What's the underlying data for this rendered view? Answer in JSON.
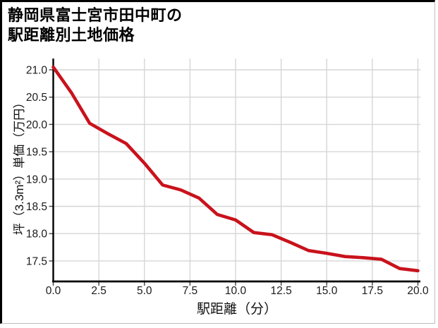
{
  "window": {
    "background": "#ffffff",
    "border_dark": "#000000",
    "border_light": "#bdbdbd"
  },
  "title": {
    "line1": "静岡県富士宮市田中町の",
    "line2": "駅距離別土地価格"
  },
  "chart_data": {
    "type": "line",
    "title": "静岡県富士宮市田中町の駅距離別土地価格",
    "xlabel": "駅距離（分）",
    "ylabel": "坪（3.3m²）単価（万円）",
    "x": [
      0,
      1,
      2,
      3,
      4,
      5,
      6,
      7,
      8,
      9,
      10,
      11,
      12,
      13,
      14,
      15,
      16,
      17,
      18,
      19,
      20
    ],
    "values": [
      21.05,
      20.58,
      20.02,
      19.83,
      19.65,
      19.29,
      18.89,
      18.8,
      18.65,
      18.35,
      18.25,
      18.02,
      17.98,
      17.84,
      17.69,
      17.64,
      17.58,
      17.56,
      17.53,
      17.36,
      17.32
    ],
    "xticks": [
      0.0,
      2.5,
      5.0,
      7.5,
      10.0,
      12.5,
      15.0,
      17.5,
      20.0
    ],
    "xtick_labels": [
      "0.0",
      "2.5",
      "5.0",
      "7.5",
      "10.0",
      "12.5",
      "15.0",
      "17.5",
      "20.0"
    ],
    "yticks": [
      17.5,
      18.0,
      18.5,
      19.0,
      19.5,
      20.0,
      20.5,
      21.0
    ],
    "ytick_labels": [
      "17.5",
      "18.0",
      "18.5",
      "19.0",
      "19.5",
      "20.0",
      "20.5",
      "21.0"
    ],
    "xlim": [
      0.0,
      20.15
    ],
    "ylim": [
      17.12,
      21.21
    ],
    "grid": true,
    "legend": "none",
    "line_color": "#c9121c",
    "grid_color": "#d6d6d6",
    "axis_color": "#000000",
    "tick_label_color": "#1a1a1a"
  }
}
